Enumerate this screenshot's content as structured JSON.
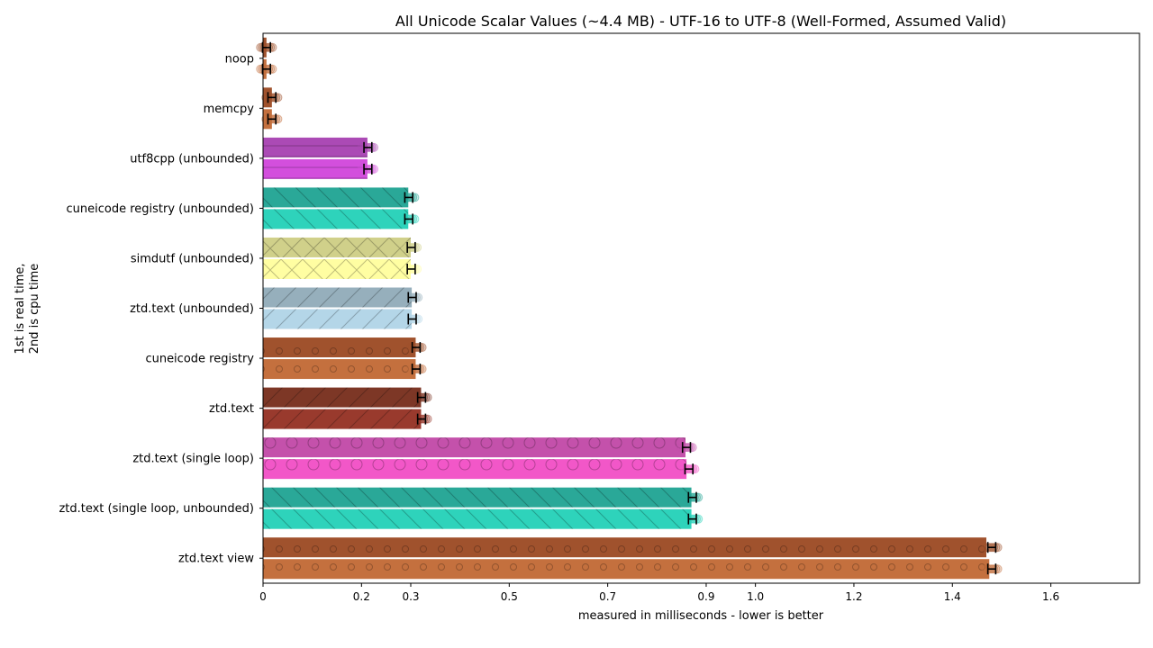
{
  "chart_data": {
    "type": "bar",
    "orientation": "horizontal",
    "title": "All Unicode Scalar Values (~4.4 MB) - UTF-16 to UTF-8 (Well-Formed, Assumed Valid)",
    "xlabel": "measured in milliseconds - lower is better",
    "ylabel_lines": [
      "1st is real time,",
      "2nd is cpu time"
    ],
    "xlim": [
      0,
      1.78
    ],
    "xticks": [
      {
        "value": 0,
        "label": "0"
      },
      {
        "value": 0.2,
        "label": "0.2"
      },
      {
        "value": 0.3,
        "label": "0.3"
      },
      {
        "value": 0.5,
        "label": "0.5"
      },
      {
        "value": 0.7,
        "label": "0.7"
      },
      {
        "value": 0.9,
        "label": "0.9"
      },
      {
        "value": 1.0,
        "label": "1.0"
      },
      {
        "value": 1.2,
        "label": "1.2"
      },
      {
        "value": 1.4,
        "label": "1.4"
      },
      {
        "value": 1.6,
        "label": "1.6"
      }
    ],
    "grid": false,
    "categories": [
      "noop",
      "memcpy",
      "utf8cpp (unbounded)",
      "cuneicode registry (unbounded)",
      "simdutf (unbounded)",
      "ztd.text (unbounded)",
      "cuneicode registry",
      "ztd.text",
      "ztd.text (single loop)",
      "ztd.text (single loop, unbounded)",
      "ztd.text view"
    ],
    "series": [
      {
        "name": "real time",
        "values": [
          0.007,
          0.018,
          0.212,
          0.295,
          0.3,
          0.302,
          0.31,
          0.321,
          0.858,
          0.87,
          1.469
        ]
      },
      {
        "name": "cpu time",
        "values": [
          0.007,
          0.018,
          0.212,
          0.295,
          0.3,
          0.302,
          0.31,
          0.321,
          0.86,
          0.87,
          1.475
        ]
      }
    ],
    "markers": {
      "real": [
        0.007,
        0.018,
        0.213,
        0.296,
        0.301,
        0.303,
        0.311,
        0.322,
        0.86,
        0.872,
        1.48
      ],
      "cpu": [
        0.007,
        0.018,
        0.213,
        0.296,
        0.301,
        0.303,
        0.311,
        0.322,
        0.865,
        0.872,
        1.48
      ]
    },
    "colors": [
      [
        "#a0522d",
        "#c4703e"
      ],
      [
        "#a0522d",
        "#c4703e"
      ],
      [
        "#ab4ab5",
        "#d34fdd"
      ],
      [
        "#2aa898",
        "#2ed3bb"
      ],
      [
        "#d0d08a",
        "#fffea2"
      ],
      [
        "#96afbc",
        "#b4d6e8"
      ],
      [
        "#a0522d",
        "#c4703e"
      ],
      [
        "#7d3726",
        "#993a2d"
      ],
      [
        "#c451ab",
        "#f257c8"
      ],
      [
        "#2aa898",
        "#2ed3bb"
      ],
      [
        "#a0522d",
        "#c4703e"
      ]
    ],
    "patterns": [
      "none",
      "none",
      "hline",
      "backslash",
      "cross",
      "slash",
      "dots",
      "slash",
      "circles",
      "backslash",
      "dots"
    ]
  }
}
